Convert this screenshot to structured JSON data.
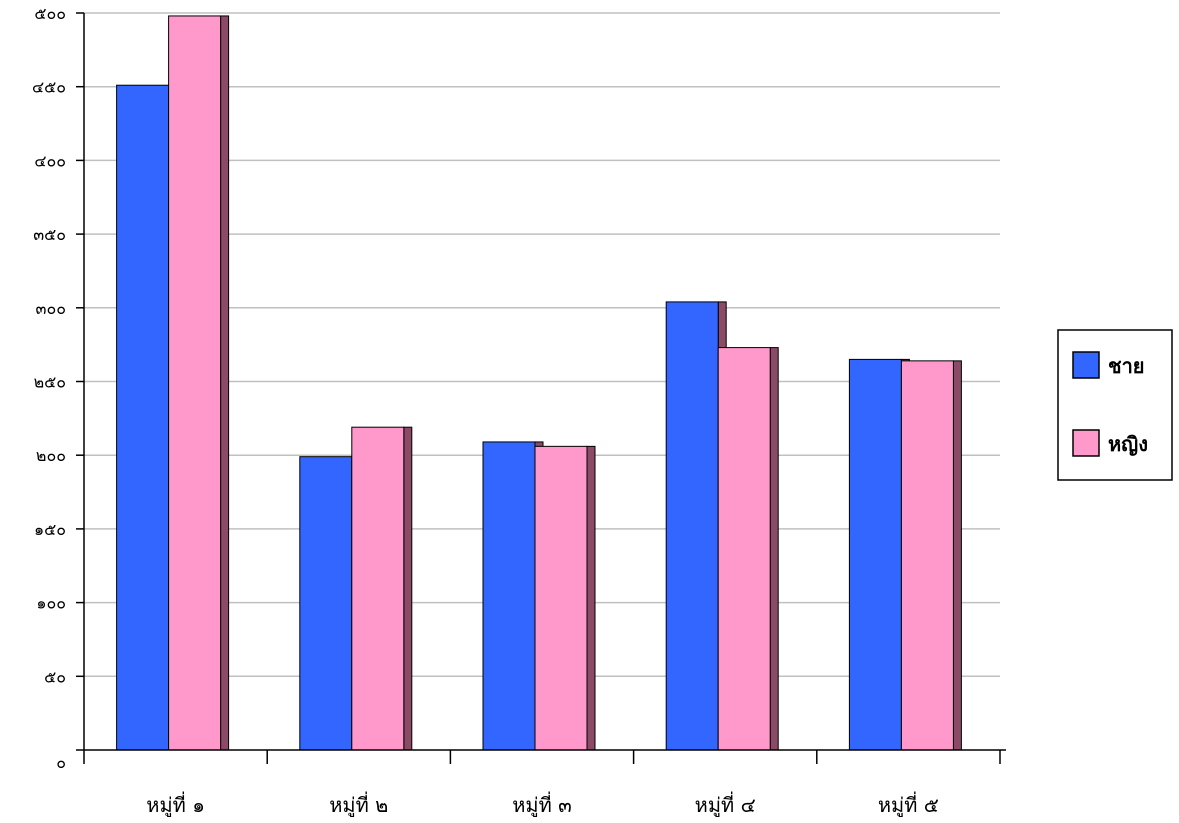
{
  "chart_data": {
    "type": "bar",
    "categories": [
      "หมู่ที่ ๑",
      "หมู่ที่ ๒",
      "หมู่ที่ ๓",
      "หมู่ที่ ๔",
      "หมู่ที่ ๕"
    ],
    "series": [
      {
        "name": "ชาย",
        "values": [
          451,
          199,
          209,
          304,
          265
        ],
        "color": "#3366ff"
      },
      {
        "name": "หญิง",
        "values": [
          498,
          219,
          206,
          273,
          264
        ],
        "color": "#ff99cc"
      }
    ],
    "ylim": [
      0,
      500
    ],
    "yticks": [
      0,
      50,
      100,
      150,
      200,
      250,
      300,
      350,
      400,
      450,
      500
    ],
    "ytick_labels": [
      "๐",
      "๕๐",
      "๑๐๐",
      "๑๕๐",
      "๒๐๐",
      "๒๕๐",
      "๓๐๐",
      "๓๕๐",
      "๔๐๐",
      "๔๕๐",
      "๕๐๐"
    ],
    "grid": true,
    "legend_position": "right",
    "shadow_color": "#8b4a66",
    "gridline_color": "#c0c0c0"
  }
}
